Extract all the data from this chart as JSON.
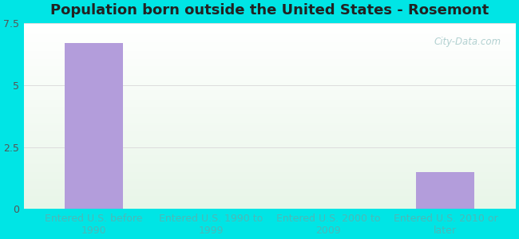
{
  "title": "Population born outside the United States - Rosemont",
  "categories": [
    "Entered U.S. before\n1990",
    "Entered U.S. 1990 to\n1999",
    "Entered U.S. 2000 to\n2009",
    "Entered U.S. 2010 or\nlater"
  ],
  "values": [
    6.7,
    0.0,
    0.0,
    1.5
  ],
  "bar_color": "#b39ddb",
  "ylim": [
    0,
    7.5
  ],
  "yticks": [
    0,
    2.5,
    5,
    7.5
  ],
  "background_outer": "#00e5e5",
  "grid_color": "#dddddd",
  "title_fontsize": 13,
  "tick_fontsize": 9,
  "xtick_color": "#4db8b8",
  "ytick_color": "#555555",
  "watermark_text": "City-Data.com",
  "watermark_color": "#aacccc",
  "title_color": "#222222"
}
